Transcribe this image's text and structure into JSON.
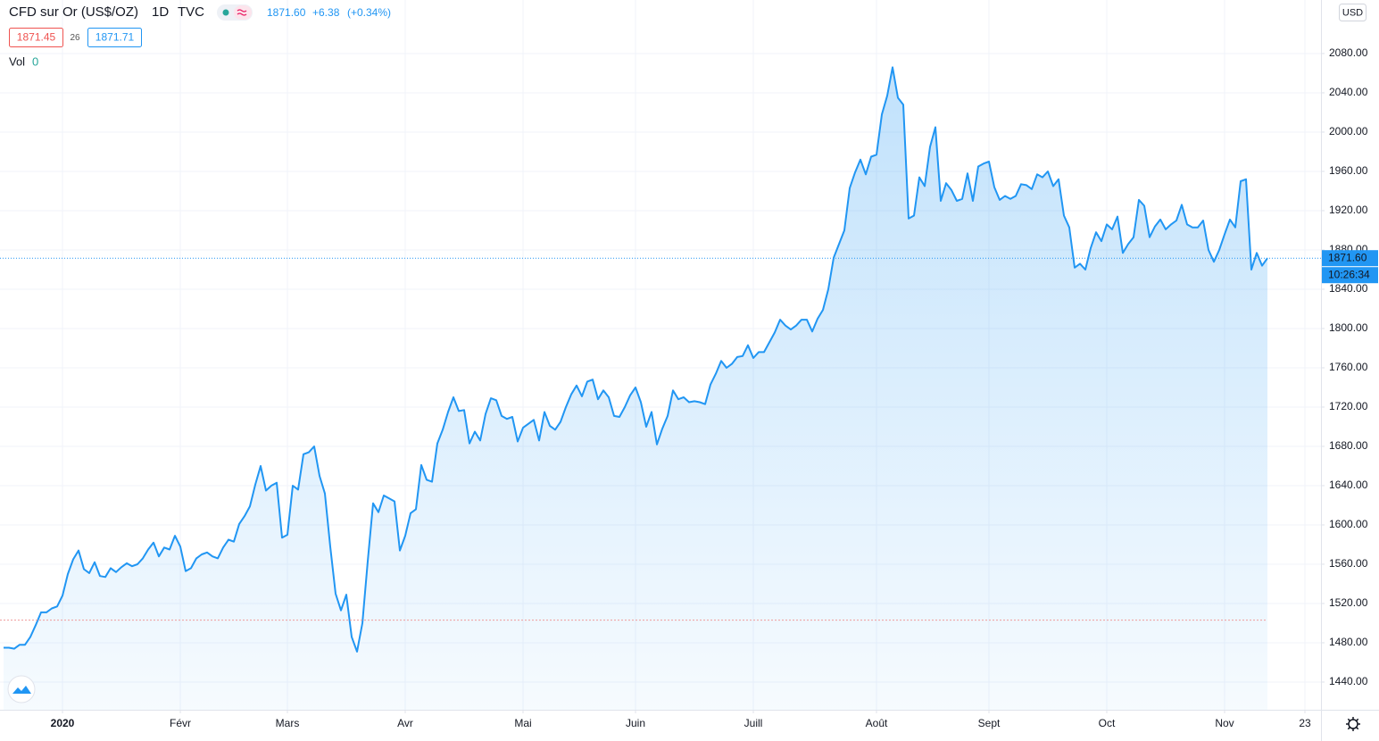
{
  "header": {
    "title": "CFD sur Or (US$/OZ)",
    "interval": "1D",
    "source": "TVC",
    "last_price": "1871.60",
    "change": "+6.38",
    "change_pct": "(+0.34%)",
    "bid": "1871.45",
    "spread": "26",
    "ask": "1871.71",
    "volume_label": "Vol",
    "volume": "0",
    "currency": "USD"
  },
  "chart_data": {
    "type": "area",
    "color": "#2196f3",
    "grid": true,
    "countdown": "10:26:34",
    "prev_close_line": 1503,
    "xlim": [
      -0.67,
      246
    ],
    "ylim": [
      1411.8,
      2134.5
    ],
    "xticks": [
      {
        "value": 11,
        "label": "2020"
      },
      {
        "value": 33,
        "label": "Févr"
      },
      {
        "value": 53,
        "label": "Mars"
      },
      {
        "value": 75,
        "label": "Avr"
      },
      {
        "value": 97,
        "label": "Mai"
      },
      {
        "value": 118,
        "label": "Juin"
      },
      {
        "value": 140,
        "label": "Juill"
      },
      {
        "value": 163,
        "label": "Août"
      },
      {
        "value": 184,
        "label": "Sept"
      },
      {
        "value": 206,
        "label": "Oct"
      },
      {
        "value": 228,
        "label": "Nov"
      },
      {
        "value": 243,
        "label": "23"
      }
    ],
    "yticks": [
      {
        "value": 1440,
        "label": "1440.00"
      },
      {
        "value": 1480,
        "label": "1480.00"
      },
      {
        "value": 1520,
        "label": "1520.00"
      },
      {
        "value": 1560,
        "label": "1560.00"
      },
      {
        "value": 1600,
        "label": "1600.00"
      },
      {
        "value": 1640,
        "label": "1640.00"
      },
      {
        "value": 1680,
        "label": "1680.00"
      },
      {
        "value": 1720,
        "label": "1720.00"
      },
      {
        "value": 1760,
        "label": "1760.00"
      },
      {
        "value": 1800,
        "label": "1800.00"
      },
      {
        "value": 1840,
        "label": "1840.00"
      },
      {
        "value": 1880,
        "label": "1880.00"
      },
      {
        "value": 1920,
        "label": "1920.00"
      },
      {
        "value": 1960,
        "label": "1960.00"
      },
      {
        "value": 2000,
        "label": "2000.00"
      },
      {
        "value": 2040,
        "label": "2040.00"
      },
      {
        "value": 2080,
        "label": "2080.00"
      }
    ],
    "series": [
      {
        "values": [
          1475,
          1475,
          1474,
          1478,
          1478,
          1486,
          1498,
          1511,
          1511,
          1515,
          1517,
          1528,
          1550,
          1565,
          1574,
          1555,
          1551,
          1562,
          1548,
          1547,
          1556,
          1552,
          1557,
          1561,
          1558,
          1560,
          1566,
          1575,
          1582,
          1568,
          1577,
          1575,
          1589,
          1578,
          1553,
          1556,
          1566,
          1570,
          1572,
          1568,
          1566,
          1577,
          1585,
          1583,
          1601,
          1609,
          1619,
          1641,
          1660,
          1635,
          1640,
          1643,
          1587,
          1590,
          1640,
          1636,
          1672,
          1674,
          1680,
          1650,
          1632,
          1578,
          1530,
          1513,
          1529,
          1486,
          1471,
          1500,
          1563,
          1622,
          1613,
          1630,
          1627,
          1624,
          1574,
          1589,
          1612,
          1616,
          1661,
          1646,
          1644,
          1683,
          1697,
          1715,
          1730,
          1716,
          1717,
          1683,
          1695,
          1686,
          1713,
          1729,
          1727,
          1711,
          1708,
          1710,
          1685,
          1699,
          1703,
          1707,
          1686,
          1715,
          1701,
          1697,
          1705,
          1720,
          1733,
          1742,
          1731,
          1746,
          1748,
          1728,
          1737,
          1730,
          1711,
          1710,
          1720,
          1732,
          1740,
          1725,
          1700,
          1715,
          1682,
          1698,
          1711,
          1737,
          1728,
          1730,
          1725,
          1726,
          1725,
          1723,
          1743,
          1754,
          1767,
          1760,
          1764,
          1771,
          1772,
          1783,
          1770,
          1776,
          1776,
          1786,
          1796,
          1809,
          1803,
          1799,
          1803,
          1809,
          1809,
          1797,
          1810,
          1819,
          1840,
          1872,
          1886,
          1900,
          1943,
          1959,
          1972,
          1957,
          1975,
          1977,
          2018,
          2037,
          2066,
          2035,
          2028,
          1912,
          1915,
          1954,
          1945,
          1985,
          2005,
          1930,
          1948,
          1941,
          1930,
          1932,
          1958,
          1930,
          1965,
          1968,
          1970,
          1944,
          1931,
          1935,
          1932,
          1935,
          1947,
          1946,
          1942,
          1957,
          1954,
          1960,
          1945,
          1952,
          1915,
          1903,
          1862,
          1866,
          1860,
          1882,
          1898,
          1889,
          1906,
          1901,
          1914,
          1877,
          1886,
          1893,
          1931,
          1925,
          1893,
          1904,
          1911,
          1901,
          1906,
          1910,
          1926,
          1906,
          1903,
          1903,
          1910,
          1880,
          1868,
          1880,
          1896,
          1911,
          1903,
          1950,
          1952,
          1860,
          1877,
          1864,
          1871.6
        ]
      }
    ]
  }
}
